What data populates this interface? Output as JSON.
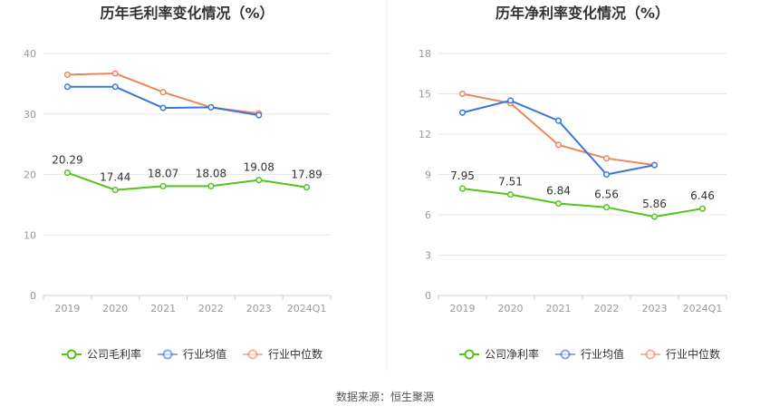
{
  "chart_data": [
    {
      "type": "line",
      "title": "历年毛利率变化情况（%）",
      "categories": [
        "2019",
        "2020",
        "2021",
        "2022",
        "2023",
        "2024Q1"
      ],
      "ylim": [
        0,
        40
      ],
      "yticks": [
        0,
        10,
        20,
        30,
        40
      ],
      "grid": true,
      "legend_position": "bottom",
      "series": [
        {
          "name": "公司毛利率",
          "color": "#52c41a",
          "values": [
            20.29,
            17.44,
            18.07,
            18.08,
            19.08,
            17.89
          ],
          "labels": [
            "20.29",
            "17.44",
            "18.07",
            "18.08",
            "19.08",
            "17.89"
          ]
        },
        {
          "name": "行业均值",
          "color": "#3a78d8",
          "values": [
            34.5,
            34.5,
            31.0,
            31.1,
            29.8,
            null
          ]
        },
        {
          "name": "行业中位数",
          "color": "#f0845c",
          "values": [
            36.5,
            36.7,
            33.6,
            31.1,
            30.1,
            null
          ]
        }
      ]
    },
    {
      "type": "line",
      "title": "历年净利率变化情况（%）",
      "categories": [
        "2019",
        "2020",
        "2021",
        "2022",
        "2023",
        "2024Q1"
      ],
      "ylim": [
        0,
        18
      ],
      "yticks": [
        0,
        3,
        6,
        9,
        12,
        15,
        18
      ],
      "grid": true,
      "legend_position": "bottom",
      "series": [
        {
          "name": "公司净利率",
          "color": "#52c41a",
          "values": [
            7.95,
            7.51,
            6.84,
            6.56,
            5.86,
            6.46
          ],
          "labels": [
            "7.95",
            "7.51",
            "6.84",
            "6.56",
            "5.86",
            "6.46"
          ]
        },
        {
          "name": "行业均值",
          "color": "#3a78d8",
          "values": [
            13.6,
            14.5,
            13.0,
            9.0,
            9.7,
            null
          ]
        },
        {
          "name": "行业中位数",
          "color": "#f0845c",
          "values": [
            15.0,
            14.3,
            11.2,
            10.2,
            9.7,
            null
          ]
        }
      ]
    }
  ],
  "source_text": "数据来源：恒生聚源"
}
